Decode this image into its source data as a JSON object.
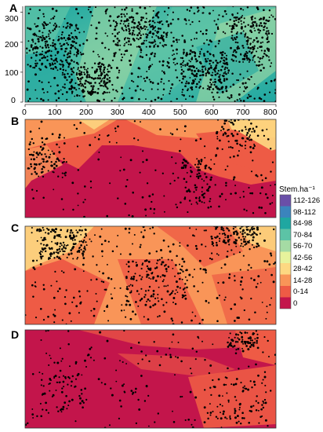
{
  "chart_data": [
    {
      "panel": "A",
      "type": "heatmap",
      "xlim": [
        0,
        800
      ],
      "ylim": [
        0,
        320
      ],
      "x_ticks": [
        "0",
        "100",
        "200",
        "300",
        "400",
        "500",
        "600",
        "700",
        "800"
      ],
      "y_ticks": [
        "0",
        "100",
        "200",
        "300"
      ],
      "dominant_classes": [
        "84-98",
        "70-84",
        "56-70"
      ],
      "points": "black stem locations",
      "point_count_visible": "dense"
    },
    {
      "panel": "B",
      "type": "heatmap",
      "dominant_classes": [
        "0",
        "0-14",
        "14-28",
        "28-42"
      ],
      "points": "black stem locations"
    },
    {
      "panel": "C",
      "type": "heatmap",
      "dominant_classes": [
        "14-28",
        "28-42",
        "0-14"
      ],
      "points": "black stem locations"
    },
    {
      "panel": "D",
      "type": "heatmap",
      "dominant_classes": [
        "0",
        "0-14"
      ],
      "points": "black stem locations"
    }
  ],
  "legend": {
    "title": "Stem.ha⁻¹",
    "entries": [
      {
        "label": "112-126",
        "color": "#6a4fa8"
      },
      {
        "label": "98-112",
        "color": "#3b84bd"
      },
      {
        "label": "84-98",
        "color": "#1fa7a1"
      },
      {
        "label": "70-84",
        "color": "#5cc3a6"
      },
      {
        "label": "56-70",
        "color": "#a5dba4"
      },
      {
        "label": "42-56",
        "color": "#e7f39c"
      },
      {
        "label": "28-42",
        "color": "#fdd882"
      },
      {
        "label": "14-28",
        "color": "#f99558"
      },
      {
        "label": "0-14",
        "color": "#ee5b45"
      },
      {
        "label": "0",
        "color": "#c3154b"
      }
    ]
  },
  "panels": {
    "a": {
      "label": "A"
    },
    "b": {
      "label": "B"
    },
    "c": {
      "label": "C"
    },
    "d": {
      "label": "D"
    }
  }
}
